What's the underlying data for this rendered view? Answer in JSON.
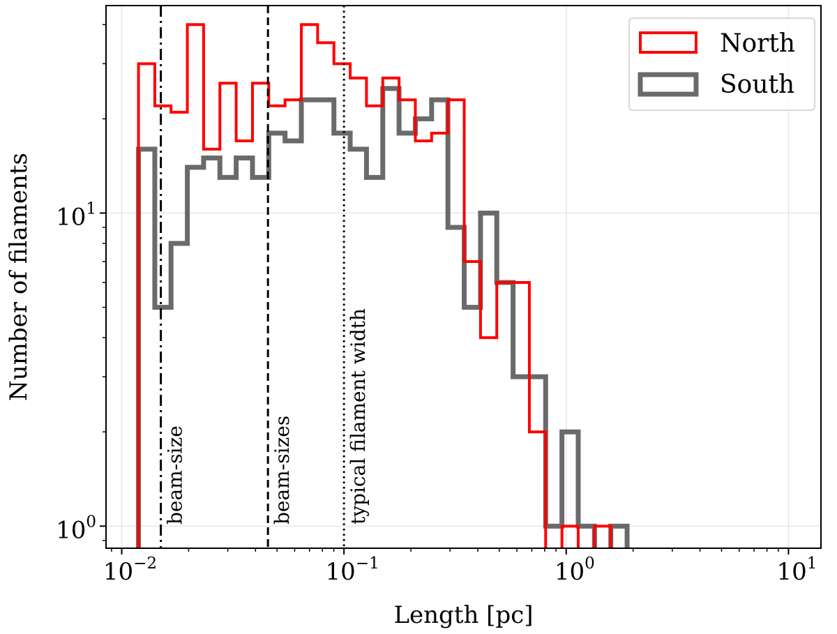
{
  "chart_data": {
    "type": "histogram",
    "xscale": "log",
    "yscale": "log",
    "xlabel": "Length [pc]",
    "ylabel": "Number of filaments",
    "xlim": [
      0.0085,
      14
    ],
    "ylim": [
      0.85,
      46
    ],
    "grid": true,
    "legend_position": "top-right",
    "x_ticks": [
      {
        "value": 0.01,
        "base": "10",
        "exp": "−2"
      },
      {
        "value": 0.1,
        "base": "10",
        "exp": "−1"
      },
      {
        "value": 1,
        "base": "10",
        "exp": "0"
      },
      {
        "value": 10,
        "base": "10",
        "exp": "1"
      }
    ],
    "y_ticks": [
      {
        "value": 1,
        "base": "10",
        "exp": "0"
      },
      {
        "value": 10,
        "base": "10",
        "exp": "1"
      }
    ],
    "series": [
      {
        "name": "North",
        "color": "#ff0000",
        "edges": [
          0.0119,
          0.01409,
          0.01667,
          0.01974,
          0.02336,
          0.02766,
          0.03274,
          0.03876,
          0.04588,
          0.05432,
          0.0643,
          0.07612,
          0.09011,
          0.10667,
          0.12628,
          0.14949,
          0.17697,
          0.2095,
          0.248,
          0.2936,
          0.3476,
          0.4115,
          0.4871,
          0.5766,
          0.6826,
          0.8081,
          0.9566,
          1.1324,
          1.3406,
          1.587
        ],
        "counts": [
          30,
          22,
          21,
          40,
          16,
          26,
          17,
          26,
          22,
          23,
          40,
          35,
          30,
          27,
          22,
          27,
          23,
          17,
          18,
          23,
          7,
          4,
          6,
          6,
          2,
          0,
          1,
          0,
          1
        ]
      },
      {
        "name": "South",
        "color": "#555555",
        "edges": [
          0.0119,
          0.01409,
          0.01667,
          0.01974,
          0.02336,
          0.02766,
          0.03274,
          0.03876,
          0.04588,
          0.05432,
          0.0643,
          0.07612,
          0.09011,
          0.10667,
          0.12628,
          0.14949,
          0.17697,
          0.2095,
          0.248,
          0.2936,
          0.3476,
          0.4115,
          0.4871,
          0.5766,
          0.6826,
          0.8081,
          0.9566,
          1.1324,
          1.3406,
          1.587,
          1.8789,
          2.2243
        ],
        "counts": [
          16,
          5,
          8,
          14,
          15,
          13,
          15,
          13,
          18,
          17,
          23,
          23,
          18,
          16,
          13,
          25,
          18,
          20,
          23,
          9,
          5,
          10,
          6,
          3,
          3,
          1,
          2,
          1,
          0,
          1,
          0
        ]
      }
    ],
    "vlines": [
      {
        "x": 0.015,
        "style": "dashdot",
        "label": "beam-size"
      },
      {
        "x": 0.0455,
        "style": "dashed",
        "label": "beam-sizes"
      },
      {
        "x": 0.1,
        "style": "dotted",
        "label": "typical filament width"
      }
    ]
  }
}
